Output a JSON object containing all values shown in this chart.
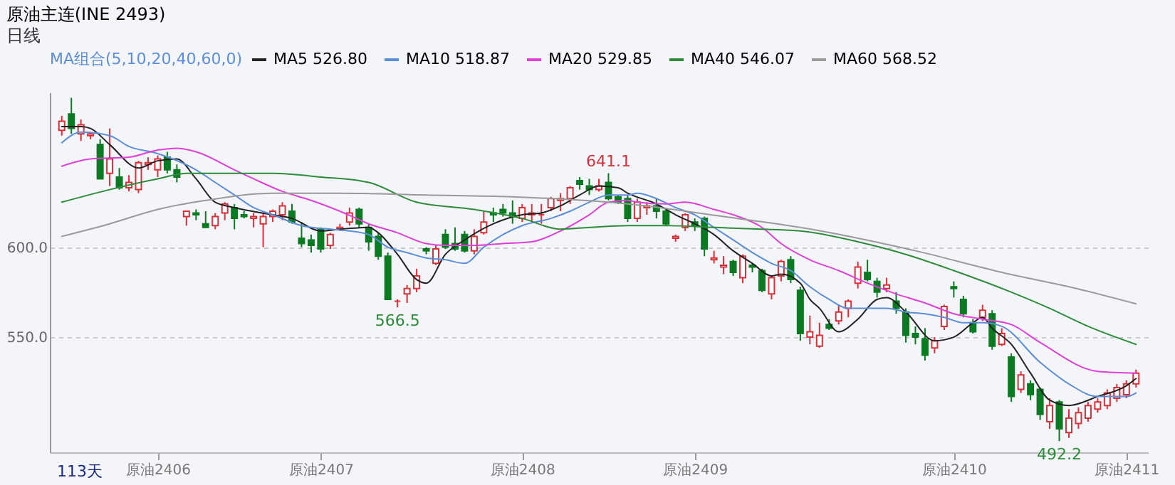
{
  "chart_data": {
    "type": "candlestick",
    "title": "原油主连(INE 2493)",
    "subtitle": "日线",
    "legend_title": "MA组合(5,10,20,40,60,0)",
    "legend": "top",
    "grid": "y",
    "categories": [
      null,
      null,
      null,
      null,
      null,
      null,
      null,
      null,
      null,
      null,
      "原油2406",
      null,
      null,
      null,
      null,
      null,
      null,
      null,
      null,
      null,
      null,
      null,
      null,
      null,
      null,
      null,
      null,
      "原油2407",
      null,
      null,
      null,
      null,
      null,
      null,
      null,
      null,
      null,
      null,
      null,
      null,
      null,
      null,
      null,
      null,
      null,
      null,
      null,
      null,
      "原油2408",
      null,
      null,
      null,
      null,
      null,
      null,
      null,
      null,
      null,
      null,
      null,
      null,
      null,
      null,
      null,
      null,
      null,
      "原油2409",
      null,
      null,
      null,
      null,
      null,
      null,
      null,
      null,
      null,
      null,
      null,
      null,
      null,
      null,
      null,
      null,
      null,
      null,
      null,
      null,
      null,
      null,
      null,
      null,
      null,
      null,
      "原油2410",
      null,
      null,
      null,
      null,
      null,
      null,
      null,
      null,
      null,
      null,
      null,
      null,
      null,
      null,
      null,
      null,
      null,
      "原油2411",
      null
    ],
    "ylim": [
      486,
      686
    ],
    "yticks": [
      {
        "value": 550,
        "label": "550.0"
      },
      {
        "value": 600,
        "label": "600.0"
      }
    ],
    "ohlc": [
      [
        665,
        673,
        662,
        670
      ],
      [
        674,
        683,
        663,
        666
      ],
      [
        663,
        671,
        659,
        668
      ],
      [
        662,
        664,
        660,
        663
      ],
      [
        657,
        660,
        638,
        638
      ],
      [
        641,
        666,
        634,
        649
      ],
      [
        639,
        644,
        632,
        633
      ],
      [
        633,
        640,
        631,
        636
      ],
      [
        632,
        648,
        630,
        647
      ],
      [
        646,
        650,
        643,
        647
      ],
      [
        643,
        651,
        639,
        649
      ],
      [
        650,
        653,
        641,
        643
      ],
      [
        643,
        646,
        636,
        639
      ],
      [
        617,
        620,
        612,
        620
      ],
      [
        619,
        621,
        615,
        618
      ],
      [
        613,
        620,
        611,
        611
      ],
      [
        612,
        619,
        610,
        617
      ],
      [
        619,
        625,
        615,
        624
      ],
      [
        622,
        624,
        610,
        616
      ],
      [
        618,
        620,
        616,
        617
      ],
      [
        616,
        619,
        611,
        617
      ],
      [
        613,
        619,
        600,
        617
      ],
      [
        617,
        621,
        614,
        620
      ],
      [
        618,
        625,
        615,
        623
      ],
      [
        620,
        624,
        613,
        614
      ],
      [
        605,
        614,
        600,
        602
      ],
      [
        604,
        607,
        597,
        601
      ],
      [
        610,
        611,
        597,
        599
      ],
      [
        601,
        608,
        599,
        607
      ],
      [
        610,
        613,
        609,
        611
      ],
      [
        614,
        622,
        612,
        619
      ],
      [
        621,
        622,
        611,
        613
      ],
      [
        611,
        613,
        598,
        603
      ],
      [
        606,
        608,
        593,
        595
      ],
      [
        595,
        597,
        571,
        571
      ],
      [
        570,
        571,
        566.5,
        570
      ],
      [
        574,
        579,
        569,
        577
      ],
      [
        577,
        588,
        575,
        584
      ],
      [
        599,
        600,
        596,
        598
      ],
      [
        591,
        601,
        590,
        599
      ],
      [
        607,
        610,
        599,
        600
      ],
      [
        602,
        611,
        598,
        599
      ],
      [
        607,
        609,
        597,
        598
      ],
      [
        598,
        610,
        596,
        606
      ],
      [
        608,
        620,
        607,
        614
      ],
      [
        619,
        622,
        614,
        618
      ],
      [
        621,
        624,
        617,
        619
      ],
      [
        619,
        626,
        613,
        617
      ],
      [
        616,
        624,
        614,
        622
      ],
      [
        618,
        624,
        614,
        619
      ],
      [
        618,
        624,
        613,
        618
      ],
      [
        622,
        628,
        620,
        627
      ],
      [
        626,
        630,
        620,
        627
      ],
      [
        627,
        634,
        624,
        633
      ],
      [
        637,
        639,
        632,
        635
      ],
      [
        634,
        638,
        629,
        632
      ],
      [
        632,
        638,
        631,
        634
      ],
      [
        636,
        641.1,
        626,
        627
      ],
      [
        628,
        629,
        624,
        625
      ],
      [
        627,
        629,
        614,
        616
      ],
      [
        616,
        627,
        614,
        625
      ],
      [
        622,
        625,
        618,
        623
      ],
      [
        623,
        627,
        616,
        620
      ],
      [
        620,
        622,
        612,
        613
      ],
      [
        605,
        607,
        603,
        606
      ],
      [
        611,
        619,
        609,
        618
      ],
      [
        614,
        616,
        609,
        612
      ],
      [
        616,
        617,
        595,
        599
      ],
      [
        593,
        598,
        591,
        594
      ],
      [
        589,
        595,
        585,
        590
      ],
      [
        592,
        593,
        584,
        586
      ],
      [
        583,
        596,
        580,
        595
      ],
      [
        590,
        591,
        586,
        589
      ],
      [
        587,
        588,
        575,
        576
      ],
      [
        574,
        584,
        571,
        583
      ],
      [
        584,
        593,
        581,
        592
      ],
      [
        593,
        595,
        580,
        582
      ],
      [
        576,
        578,
        548,
        552
      ],
      [
        550,
        562,
        546,
        553
      ],
      [
        545,
        558,
        544,
        551
      ],
      [
        557,
        560,
        554,
        555
      ],
      [
        559,
        568,
        557,
        564
      ],
      [
        566,
        571,
        561,
        570
      ],
      [
        580,
        592,
        577,
        589
      ],
      [
        586,
        593,
        581,
        582
      ],
      [
        581,
        583,
        572,
        575
      ],
      [
        577,
        583,
        575,
        579
      ],
      [
        570,
        575,
        563,
        566
      ],
      [
        564,
        566,
        547,
        551
      ],
      [
        552,
        556,
        546,
        550
      ],
      [
        549,
        555,
        537,
        540
      ],
      [
        544,
        550,
        541,
        548
      ],
      [
        556,
        568,
        554,
        567
      ],
      [
        578,
        581,
        572,
        577
      ],
      [
        571,
        573,
        561,
        563
      ],
      [
        558,
        560,
        552,
        553
      ],
      [
        561,
        568,
        559,
        565
      ],
      [
        563,
        565,
        543,
        545
      ],
      [
        546,
        555,
        545,
        552
      ],
      [
        539,
        541,
        514,
        517
      ],
      [
        521,
        531,
        519,
        529
      ],
      [
        524,
        526,
        515,
        518
      ],
      [
        521,
        522,
        504,
        507
      ],
      [
        503,
        516,
        499,
        512
      ],
      [
        514,
        515,
        492.2,
        499
      ],
      [
        497,
        510,
        494,
        505
      ],
      [
        502,
        511,
        499,
        508
      ],
      [
        505,
        514,
        503,
        512
      ],
      [
        510,
        516,
        508,
        514
      ],
      [
        512,
        521,
        510,
        519
      ],
      [
        516,
        524,
        514,
        522
      ],
      [
        518,
        526,
        516,
        524
      ],
      [
        524,
        532,
        522,
        530
      ]
    ],
    "series": [
      {
        "name": "MA5 526.80",
        "color": "#222222",
        "type": "line",
        "values": [
          667,
          null,
          667,
          666,
          null,
          657,
          null,
          null,
          644,
          null,
          648,
          null,
          649,
          null,
          638,
          null,
          625,
          null,
          622,
          null,
          null,
          null,
          618,
          null,
          616,
          null,
          null,
          609,
          null,
          610,
          null,
          null,
          611,
          608,
          null,
          596,
          null,
          582,
          580,
          null,
          596,
          null,
          604,
          null,
          null,
          613,
          null,
          null,
          618,
          null,
          619,
          null,
          623,
          null,
          629,
          null,
          634,
          null,
          633,
          630,
          null,
          null,
          624,
          null,
          618,
          null,
          613,
          null,
          607,
          null,
          598,
          null,
          591,
          null,
          584,
          585,
          null,
          580,
          571,
          566,
          null,
          553,
          null,
          560,
          null,
          571,
          572,
          null,
          564,
          null,
          null,
          548,
          null,
          550,
          null,
          558,
          561,
          555,
          null,
          546,
          null,
          530,
          null,
          515,
          null,
          512,
          null,
          null,
          517,
          null,
          null,
          523,
          527
        ]
      },
      {
        "name": "MA10 518.87",
        "color": "#5b8ed6",
        "type": "line",
        "values": [
          658,
          null,
          664,
          null,
          null,
          662,
          null,
          656,
          null,
          null,
          652,
          null,
          null,
          null,
          643,
          null,
          636,
          null,
          629,
          null,
          622,
          null,
          618,
          null,
          null,
          612,
          null,
          null,
          610,
          null,
          609,
          null,
          607,
          null,
          600,
          null,
          597,
          null,
          594,
          null,
          593,
          null,
          591,
          null,
          600,
          null,
          607,
          null,
          612,
          null,
          null,
          616,
          null,
          620,
          null,
          625,
          null,
          629,
          null,
          629,
          630,
          null,
          627,
          null,
          622,
          null,
          618,
          null,
          611,
          null,
          604,
          null,
          597,
          null,
          591,
          null,
          587,
          null,
          578,
          null,
          571,
          null,
          566,
          null,
          566,
          null,
          566,
          null,
          564,
          null,
          563,
          null,
          561,
          null,
          558,
          null,
          558,
          null,
          556,
          null,
          null,
          null,
          536,
          null,
          null,
          524,
          null,
          null,
          517,
          null,
          null,
          517,
          519
        ]
      },
      {
        "name": "MA20 529.85",
        "color": "#e040d8",
        "type": "line",
        "values": [
          645,
          null,
          null,
          649,
          null,
          null,
          null,
          650,
          null,
          null,
          654,
          null,
          655,
          null,
          653,
          null,
          null,
          null,
          643,
          null,
          638,
          null,
          null,
          631,
          null,
          null,
          626,
          null,
          null,
          620,
          null,
          null,
          613,
          null,
          null,
          608,
          null,
          null,
          602,
          null,
          601,
          null,
          null,
          601,
          null,
          null,
          602,
          null,
          null,
          603,
          null,
          null,
          609,
          null,
          null,
          618,
          null,
          625,
          null,
          626,
          625,
          null,
          null,
          624,
          null,
          625,
          null,
          null,
          621,
          null,
          618,
          null,
          null,
          611,
          null,
          602,
          null,
          null,
          593,
          null,
          null,
          587,
          null,
          null,
          580,
          null,
          null,
          574,
          null,
          null,
          569,
          null,
          null,
          563,
          null,
          null,
          560,
          null,
          null,
          557,
          null,
          null,
          547,
          null,
          null,
          null,
          null,
          null,
          531,
          null,
          null,
          null,
          530
        ]
      },
      {
        "name": "MA40 546.07",
        "color": "#2e8b3a",
        "type": "line",
        "values": [
          625,
          null,
          null,
          null,
          null,
          632,
          null,
          null,
          null,
          null,
          638,
          null,
          null,
          641,
          null,
          null,
          null,
          null,
          641,
          null,
          null,
          null,
          641,
          null,
          null,
          null,
          null,
          639,
          null,
          null,
          null,
          null,
          636,
          null,
          null,
          null,
          null,
          625,
          null,
          null,
          null,
          null,
          null,
          621,
          null,
          null,
          null,
          null,
          616,
          null,
          null,
          null,
          610,
          null,
          null,
          611,
          null,
          null,
          null,
          612,
          null,
          null,
          null,
          612,
          null,
          null,
          null,
          null,
          611,
          null,
          null,
          null,
          null,
          610,
          null,
          null,
          null,
          609,
          null,
          null,
          null,
          null,
          null,
          603,
          null,
          null,
          null,
          null,
          596,
          null,
          null,
          null,
          null,
          587,
          null,
          null,
          null,
          null,
          null,
          575,
          null,
          null,
          null,
          566,
          null,
          null,
          null,
          556,
          null,
          null,
          null,
          null,
          546
        ]
      },
      {
        "name": "MA60 568.52",
        "color": "#9a9a9a",
        "type": "line",
        "values": [
          606,
          null,
          null,
          null,
          null,
          613,
          null,
          null,
          null,
          null,
          621,
          null,
          null,
          null,
          null,
          626,
          null,
          null,
          null,
          null,
          null,
          null,
          630,
          null,
          null,
          null,
          null,
          null,
          null,
          630,
          null,
          null,
          null,
          null,
          null,
          null,
          null,
          null,
          629,
          null,
          null,
          null,
          null,
          null,
          null,
          null,
          null,
          628,
          null,
          null,
          null,
          null,
          null,
          null,
          null,
          null,
          null,
          null,
          null,
          624,
          null,
          null,
          null,
          null,
          null,
          null,
          null,
          null,
          null,
          617,
          null,
          null,
          null,
          null,
          null,
          null,
          null,
          611,
          null,
          null,
          null,
          null,
          null,
          null,
          null,
          null,
          null,
          null,
          null,
          598,
          null,
          null,
          null,
          null,
          null,
          null,
          null,
          null,
          586,
          null,
          null,
          null,
          null,
          null,
          null,
          578,
          null,
          null,
          null,
          null,
          null,
          null,
          568.5
        ]
      }
    ],
    "annotations": [
      {
        "text": "641.1",
        "y": 641.1
      },
      {
        "text": "566.5",
        "y": 566.5
      },
      {
        "text": "492.2",
        "y": 492.2
      },
      "113天"
    ]
  }
}
